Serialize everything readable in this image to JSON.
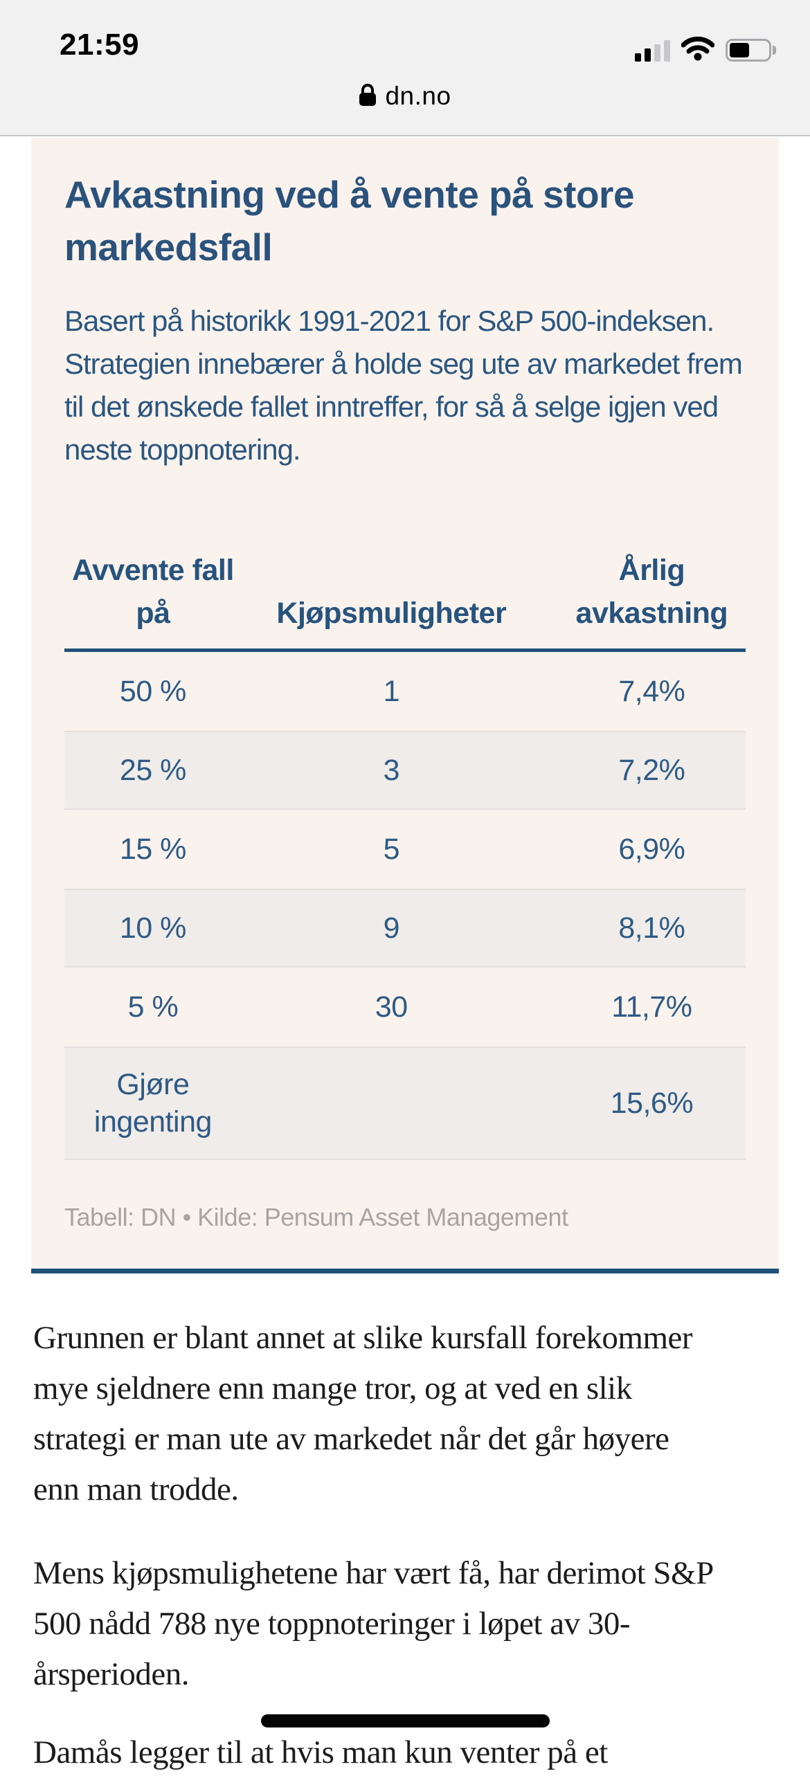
{
  "status_bar": {
    "time": "21:59",
    "signal_bars_filled": 2,
    "signal_bars_total": 4,
    "wifi": "full",
    "battery_level_visual": "50%"
  },
  "url_bar": {
    "domain": "dn.no"
  },
  "infographic": {
    "title": "Avkastning ved å vente på store markedsfall",
    "description": "Basert på historikk 1991-2021 for S&P 500-indeksen. Strategien innebærer å holde seg ute av markedet frem til det ønskede fallet inntreffer, for så å selge igjen ved neste toppnotering.",
    "source": "Tabell: DN • Kilde: Pensum Asset Management",
    "colors": {
      "panel_background": "#faf3ed",
      "stripe_background": "#f0ece9",
      "heading_blue": "#2a527c",
      "cell_blue": "#2e5a86",
      "rule_blue": "#20527a",
      "source_gray": "#a8a4a1"
    },
    "chart_data": {
      "type": "table",
      "title": "Avkastning ved å vente på store markedsfall",
      "columns": [
        "Avvente fall på",
        "Kjøpsmuligheter",
        "Årlig avkastning"
      ],
      "rows": [
        [
          "50 %",
          "1",
          "7,4%"
        ],
        [
          "25 %",
          "3",
          "7,2%"
        ],
        [
          "15 %",
          "5",
          "6,9%"
        ],
        [
          "10 %",
          "9",
          "8,1%"
        ],
        [
          "5 %",
          "30",
          "11,7%"
        ],
        [
          "Gjøre ingenting",
          "",
          "15,6%"
        ]
      ]
    }
  },
  "article": {
    "paragraphs": [
      "Grunnen er blant annet at slike kursfall forekommer mye sjeldnere enn mange tror, og at ved en slik strategi er man ute av markedet når det går høyere enn man trodde.",
      "Mens kjøpsmulighetene har vært få, har derimot S&P 500 nådd 788 nye toppnoteringer i løpet av 30-årsperioden.",
      "Damås legger til at hvis man kun venter på et"
    ]
  }
}
